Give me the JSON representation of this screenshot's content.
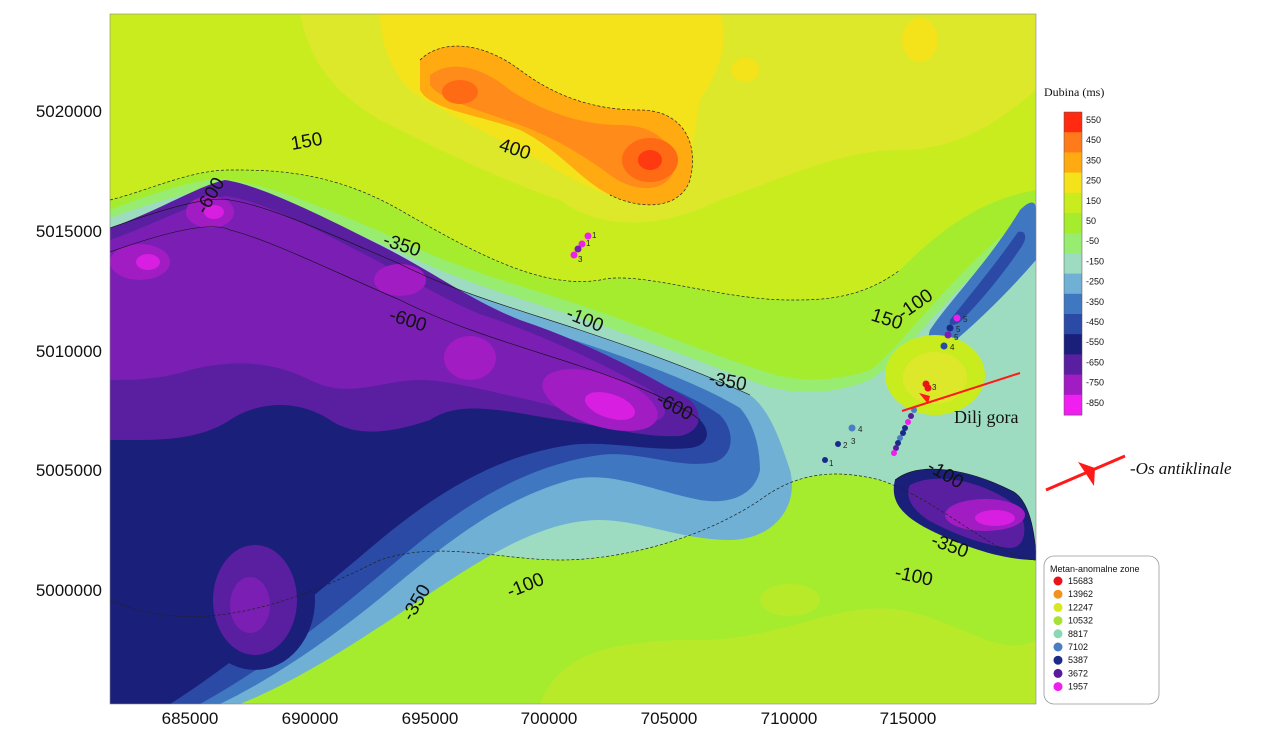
{
  "map": {
    "x_ticks": [
      "685000",
      "690000",
      "695000",
      "700000",
      "705000",
      "710000",
      "715000"
    ],
    "y_ticks": [
      "5020000",
      "5015000",
      "5010000",
      "5005000",
      "5000000"
    ],
    "contour_labels": [
      "150",
      "400",
      "-350",
      "-600",
      "-600",
      "-100",
      "-350",
      "-600",
      "150",
      "-100",
      "-100",
      "-350",
      "-100",
      "-100",
      "-350"
    ],
    "place_name": "Dilj gora"
  },
  "legend": {
    "title": "Dubina (ms)",
    "levels": [
      "550",
      "450",
      "350",
      "250",
      "150",
      "50",
      "-50",
      "-150",
      "-250",
      "-350",
      "-450",
      "-550",
      "-650",
      "-750",
      "-850"
    ],
    "colors": [
      "#ff2a10",
      "#ff7a1a",
      "#ffaa10",
      "#f4e21a",
      "#c9ec1e",
      "#a6ec2e",
      "#98ec70",
      "#9ddcc0",
      "#6fb0d4",
      "#3f78c0",
      "#2a4aa6",
      "#1a1f7a",
      "#5a1fa0",
      "#a21cc4",
      "#f01ef0"
    ]
  },
  "anticline": {
    "label": "-Os antiklinale",
    "color": "#ff1a1a"
  },
  "zones": {
    "title": "Metan-anomalne zone",
    "items": [
      {
        "value": "15683",
        "color": "#e8141a"
      },
      {
        "value": "13962",
        "color": "#f0921e"
      },
      {
        "value": "12247",
        "color": "#d8e81e"
      },
      {
        "value": "10532",
        "color": "#a8e03a"
      },
      {
        "value": "8817",
        "color": "#8ad8b4"
      },
      {
        "value": "7102",
        "color": "#4a7ec4"
      },
      {
        "value": "5387",
        "color": "#1a2a88"
      },
      {
        "value": "3672",
        "color": "#5a1a9a"
      },
      {
        "value": "1957",
        "color": "#ee1eee"
      }
    ]
  },
  "wells": {
    "labels": [
      "1",
      "1",
      "3",
      "1",
      "2",
      "3",
      "4",
      "5",
      "5",
      "5",
      "4",
      "3"
    ]
  }
}
